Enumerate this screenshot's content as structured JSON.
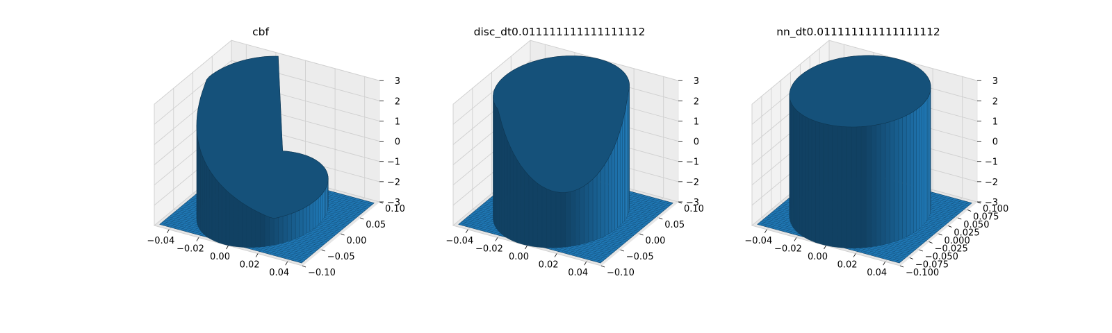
{
  "chart_data": [
    {
      "type": "surface3d",
      "title": "cbf",
      "xlim": [
        -0.05,
        0.05
      ],
      "ylim": [
        -0.1,
        0.1
      ],
      "zlim": [
        -3,
        3
      ],
      "x_ticks": [
        "−0.04",
        "−0.02",
        "0.00",
        "0.02",
        "0.04"
      ],
      "y_ticks": [
        "−0.10",
        "−0.05",
        "0.00",
        "0.05",
        "0.10"
      ],
      "z_ticks": [
        "−3",
        "−2",
        "−1",
        "0",
        "1",
        "2",
        "3"
      ],
      "grid": true,
      "surface_color": "#1f77b4",
      "edge_color": "#0d3a5c",
      "surface": {
        "floor_z": -3,
        "top_z": 3,
        "cylinder_radius_x": 0.036,
        "cylinder_radius_y": 0.1,
        "shape": "spiral-ramp"
      }
    },
    {
      "type": "surface3d",
      "title": "disc_dt0.011111111111111112",
      "xlim": [
        -0.05,
        0.05
      ],
      "ylim": [
        -0.1,
        0.1
      ],
      "zlim": [
        -3,
        3
      ],
      "x_ticks": [
        "−0.04",
        "−0.02",
        "0.00",
        "0.02",
        "0.04"
      ],
      "y_ticks": [
        "−0.10",
        "−0.05",
        "0.00",
        "0.05",
        "0.10"
      ],
      "z_ticks": [
        "−3",
        "−2",
        "−1",
        "0",
        "1",
        "2",
        "3"
      ],
      "grid": true,
      "surface_color": "#1f77b4",
      "edge_color": "#0d3a5c",
      "surface": {
        "floor_z": -3,
        "top_z": 3,
        "cylinder_radius_x": 0.038,
        "cylinder_radius_y": 0.1,
        "shape": "cut-cylinder"
      }
    },
    {
      "type": "surface3d",
      "title": "nn_dt0.011111111111111112",
      "xlim": [
        -0.05,
        0.05
      ],
      "ylim": [
        -0.1,
        0.1
      ],
      "zlim": [
        -3,
        3
      ],
      "x_ticks": [
        "−0.04",
        "−0.02",
        "0.00",
        "0.02",
        "0.04"
      ],
      "y_ticks": [
        "−0.100",
        "−0.075",
        "−0.050",
        "−0.025",
        "0.000",
        "0.025",
        "0.050",
        "0.075",
        "0.100"
      ],
      "z_ticks": [
        "−3",
        "−2",
        "−1",
        "0",
        "1",
        "2",
        "3"
      ],
      "grid": true,
      "surface_color": "#1f77b4",
      "edge_color": "#0d3a5c",
      "surface": {
        "floor_z": -3,
        "top_z": 3,
        "cylinder_radius_x": 0.04,
        "cylinder_radius_y": 0.1,
        "shape": "cylinder"
      }
    }
  ]
}
